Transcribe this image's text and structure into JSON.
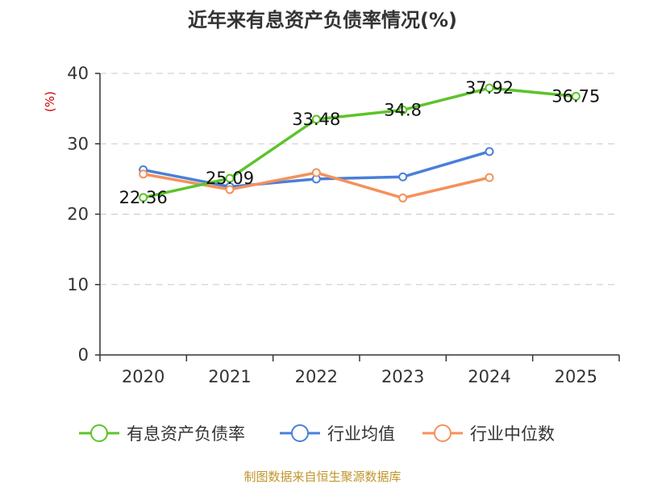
{
  "chart_data": {
    "type": "line",
    "title": "近年来有息资产负债率情况(%)",
    "ylabel": "(%)",
    "categories": [
      "2020",
      "2021",
      "2022",
      "2023",
      "2024",
      "2025"
    ],
    "ylim": [
      0,
      40
    ],
    "yticks": [
      "0",
      "10",
      "20",
      "30",
      "40"
    ],
    "grid": true,
    "legend_position": "bottom",
    "series": [
      {
        "name": "有息资产负债率",
        "color": "#5cc42a",
        "values": [
          22.36,
          25.09,
          33.48,
          34.8,
          37.92,
          36.75
        ],
        "labels": [
          "22.36",
          "25.09",
          "33.48",
          "34.8",
          "37.92",
          "36.75"
        ]
      },
      {
        "name": "行业均值",
        "color": "#4a7fd9",
        "values": [
          26.3,
          23.9,
          25.0,
          25.3,
          28.9,
          null
        ],
        "labels": []
      },
      {
        "name": "行业中位数",
        "color": "#f5915a",
        "values": [
          25.7,
          23.5,
          25.9,
          22.3,
          25.2,
          null
        ],
        "labels": []
      }
    ]
  },
  "source": "制图数据来自恒生聚源数据库",
  "colors": {
    "ylabel": "#cc0000",
    "source": "#c0962a",
    "grid": "#c8c8c8",
    "axis": "#333333"
  }
}
